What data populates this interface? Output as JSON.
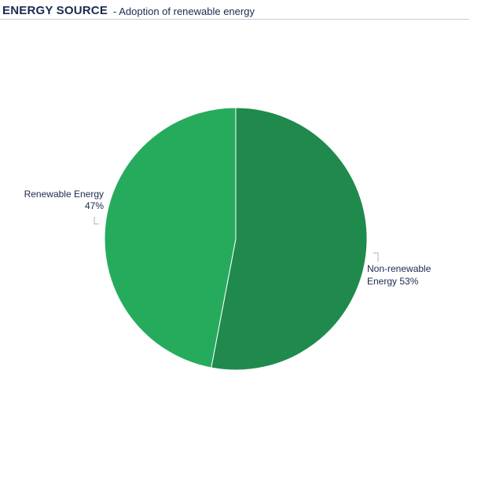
{
  "header": {
    "title": "ENERGY SOURCE",
    "subtitle": "- Adoption of renewable energy"
  },
  "chart_data": {
    "type": "pie",
    "slices": [
      {
        "label": "Non-renewable Energy",
        "value": 53,
        "display_line1": "Non-renewable",
        "display_line2": "Energy 53%",
        "color": "#1f8a4c"
      },
      {
        "label": "Renewable Energy",
        "value": 47,
        "display_line1": "Renewable Energy",
        "display_line2": "47%",
        "color": "#26ab5d"
      }
    ]
  }
}
